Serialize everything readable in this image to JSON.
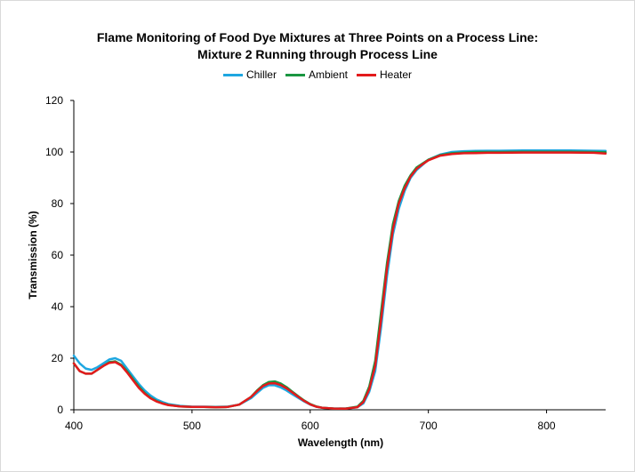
{
  "chart_data": {
    "type": "line",
    "title": "Flame Monitoring of Food Dye Mixtures at Three Points on a Process Line:",
    "subtitle": "Mixture 2 Running through Process Line",
    "xlabel": "Wavelength (nm)",
    "ylabel": "Transmission (%)",
    "xlim": [
      400,
      850
    ],
    "ylim": [
      0,
      120
    ],
    "xticks": [
      400,
      500,
      600,
      700,
      800
    ],
    "yticks": [
      0,
      20,
      40,
      60,
      80,
      100,
      120
    ],
    "grid": false,
    "legend_position": "top",
    "series": [
      {
        "name": "Chiller",
        "color": "#1ea7e1",
        "x": [
          400,
          405,
          410,
          415,
          420,
          425,
          430,
          435,
          440,
          445,
          450,
          455,
          460,
          465,
          470,
          475,
          480,
          490,
          500,
          510,
          520,
          530,
          540,
          550,
          555,
          560,
          565,
          570,
          575,
          580,
          585,
          590,
          595,
          600,
          605,
          610,
          620,
          630,
          640,
          645,
          650,
          655,
          660,
          665,
          670,
          675,
          680,
          685,
          690,
          695,
          700,
          710,
          720,
          730,
          740,
          750,
          760,
          780,
          800,
          820,
          840,
          850
        ],
        "values": [
          21,
          18,
          16,
          15.5,
          16.5,
          18,
          19.5,
          20,
          19,
          16,
          13,
          10,
          7.5,
          5.5,
          4,
          3,
          2.2,
          1.5,
          1.2,
          1.2,
          1.1,
          1.2,
          2,
          4.5,
          6.5,
          8.5,
          9.5,
          9.5,
          8.7,
          7.5,
          6,
          4.6,
          3.2,
          2,
          1.2,
          0.8,
          0.5,
          0.5,
          1,
          2.5,
          7,
          15,
          32,
          52,
          68,
          78,
          85,
          90,
          93,
          95,
          97,
          99,
          100,
          100.3,
          100.4,
          100.5,
          100.5,
          100.6,
          100.6,
          100.6,
          100.5,
          100.4
        ]
      },
      {
        "name": "Ambient",
        "color": "#1a9641",
        "x": [
          400,
          405,
          410,
          415,
          420,
          425,
          430,
          435,
          440,
          445,
          450,
          455,
          460,
          465,
          470,
          475,
          480,
          490,
          500,
          510,
          520,
          530,
          540,
          550,
          555,
          560,
          565,
          570,
          575,
          580,
          585,
          590,
          595,
          600,
          605,
          610,
          620,
          630,
          640,
          645,
          650,
          655,
          660,
          665,
          670,
          675,
          680,
          685,
          690,
          695,
          700,
          710,
          720,
          730,
          740,
          750,
          760,
          780,
          800,
          820,
          840,
          850
        ],
        "values": [
          18,
          15,
          14,
          14,
          15.5,
          17,
          18.5,
          18.8,
          17.5,
          15,
          12,
          9,
          6.5,
          4.6,
          3.4,
          2.5,
          1.9,
          1.3,
          1.1,
          1.1,
          1,
          1.1,
          2,
          5,
          7.5,
          9.5,
          10.8,
          11,
          10.2,
          8.8,
          7,
          5.2,
          3.6,
          2.2,
          1.3,
          0.8,
          0.5,
          0.5,
          1.2,
          3.5,
          9,
          19,
          38,
          57,
          72,
          81,
          87,
          91,
          94,
          95.5,
          97,
          98.8,
          99.5,
          99.8,
          100,
          100,
          100,
          100.1,
          100.1,
          100.1,
          100,
          99.9
        ]
      },
      {
        "name": "Heater",
        "color": "#e31a1c",
        "x": [
          400,
          405,
          410,
          415,
          420,
          425,
          430,
          435,
          440,
          445,
          450,
          455,
          460,
          465,
          470,
          475,
          480,
          490,
          500,
          510,
          520,
          530,
          540,
          550,
          555,
          560,
          565,
          570,
          575,
          580,
          585,
          590,
          595,
          600,
          605,
          610,
          620,
          630,
          640,
          645,
          650,
          655,
          660,
          665,
          670,
          675,
          680,
          685,
          690,
          695,
          700,
          710,
          720,
          730,
          740,
          750,
          760,
          780,
          800,
          820,
          840,
          850
        ],
        "values": [
          18,
          15,
          14,
          14,
          15.5,
          17,
          18.2,
          18.5,
          17.2,
          14.5,
          11.5,
          8.5,
          6.2,
          4.4,
          3.2,
          2.4,
          1.8,
          1.3,
          1.1,
          1.1,
          1,
          1.1,
          2,
          5,
          7.2,
          9.2,
          10.2,
          10.3,
          9.6,
          8.3,
          6.7,
          5,
          3.4,
          2.1,
          1.2,
          0.8,
          0.5,
          0.4,
          1,
          3,
          8,
          17,
          35,
          55,
          70,
          80,
          86,
          90.5,
          93.5,
          95.2,
          96.8,
          98.6,
          99.2,
          99.5,
          99.6,
          99.7,
          99.7,
          99.8,
          99.8,
          99.8,
          99.7,
          99.4
        ]
      }
    ]
  }
}
